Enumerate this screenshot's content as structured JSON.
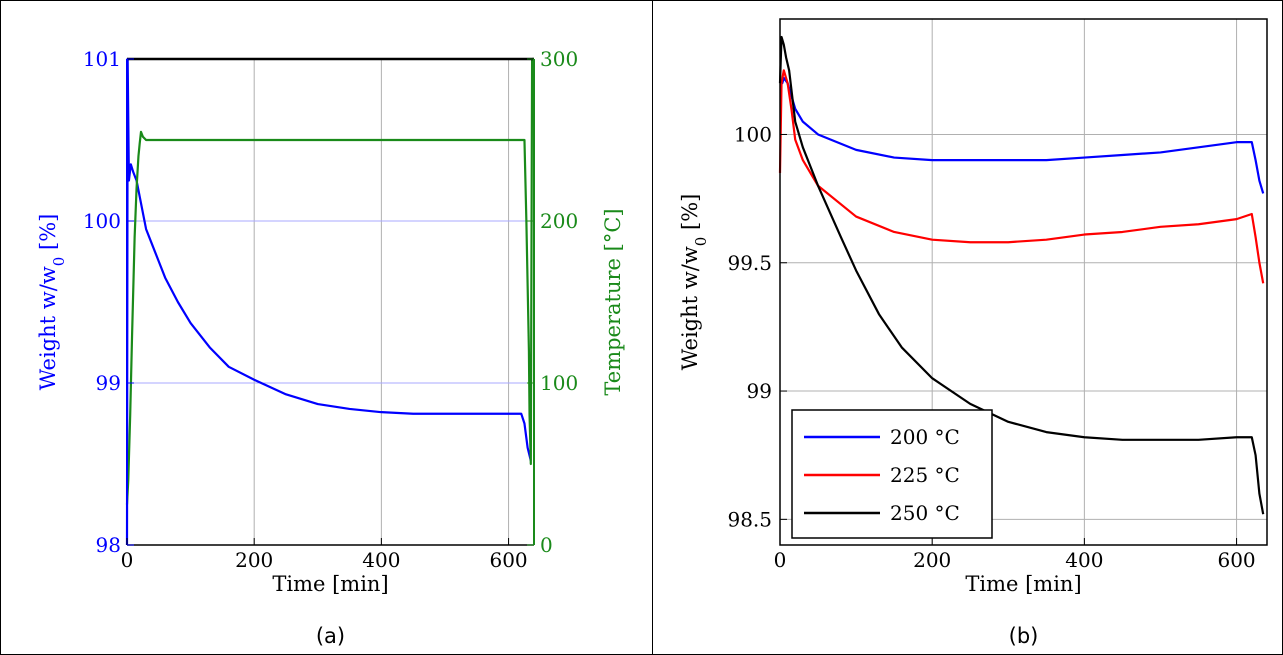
{
  "chart_data": [
    {
      "panel_label": "(a)",
      "type": "line",
      "dual_axis": true,
      "xlabel": "Time [min]",
      "ylabel_left": "Weight w/w",
      "ylabel_left_sub": "0",
      "ylabel_left_unit": " [%]",
      "ylabel_right": "Temperature [°C]",
      "xlim": [
        0,
        640
      ],
      "ylim_left": [
        98,
        101
      ],
      "ylim_right": [
        0,
        300
      ],
      "xticks": [
        0,
        200,
        400,
        600
      ],
      "yticks_left": [
        98,
        99,
        100,
        101
      ],
      "yticks_right": [
        0,
        100,
        200,
        300
      ],
      "grid": true,
      "colors": {
        "weight": "#0000ff",
        "temperature": "#1a8a1a",
        "axis": "#000000"
      },
      "series": [
        {
          "axis": "left",
          "color": "#0000ff",
          "x": [
            0,
            1,
            3,
            6,
            10,
            15,
            20,
            25,
            30,
            40,
            50,
            60,
            80,
            100,
            130,
            160,
            200,
            250,
            300,
            350,
            400,
            450,
            500,
            550,
            600,
            620,
            625,
            630,
            635
          ],
          "y": [
            98.0,
            101.0,
            100.25,
            100.35,
            100.3,
            100.25,
            100.15,
            100.05,
            99.95,
            99.85,
            99.75,
            99.65,
            99.5,
            99.37,
            99.22,
            99.1,
            99.02,
            98.93,
            98.87,
            98.84,
            98.82,
            98.81,
            98.81,
            98.81,
            98.81,
            98.81,
            98.75,
            98.6,
            98.52
          ]
        },
        {
          "axis": "right",
          "color": "#1a8a1a",
          "x": [
            0,
            2,
            5,
            8,
            12,
            15,
            18,
            20,
            22,
            25,
            30,
            40,
            100,
            300,
            500,
            600,
            625,
            628,
            630,
            632,
            633,
            635,
            637,
            640
          ],
          "y": [
            25,
            40,
            80,
            130,
            190,
            220,
            240,
            248,
            255,
            252,
            250,
            250,
            250,
            250,
            250,
            250,
            250,
            200,
            160,
            120,
            80,
            50,
            300,
            300
          ]
        }
      ]
    },
    {
      "panel_label": "(b)",
      "type": "line",
      "xlabel": "Time [min]",
      "ylabel": "Weight w/w",
      "ylabel_sub": "0",
      "ylabel_unit": " [%]",
      "xlim": [
        0,
        640
      ],
      "ylim": [
        98.4,
        100.45
      ],
      "xticks": [
        0,
        200,
        400,
        600
      ],
      "yticks": [
        98.5,
        99,
        99.5,
        100
      ],
      "grid": true,
      "legend": "lower-left",
      "series": [
        {
          "name": "200 °C",
          "color": "#0000ff",
          "x": [
            0,
            3,
            5,
            10,
            15,
            20,
            30,
            50,
            100,
            150,
            200,
            250,
            300,
            350,
            400,
            450,
            500,
            550,
            600,
            620,
            625,
            630,
            635
          ],
          "y": [
            100.2,
            100.2,
            100.22,
            100.2,
            100.15,
            100.1,
            100.05,
            100.0,
            99.94,
            99.91,
            99.9,
            99.9,
            99.9,
            99.9,
            99.91,
            99.92,
            99.93,
            99.95,
            99.97,
            99.97,
            99.9,
            99.82,
            99.77
          ]
        },
        {
          "name": "225 °C",
          "color": "#ff0000",
          "x": [
            0,
            2,
            5,
            10,
            15,
            20,
            30,
            50,
            100,
            150,
            200,
            250,
            300,
            350,
            400,
            450,
            500,
            550,
            600,
            620,
            625,
            630,
            635
          ],
          "y": [
            99.85,
            100.2,
            100.25,
            100.2,
            100.1,
            99.98,
            99.9,
            99.8,
            99.68,
            99.62,
            99.59,
            99.58,
            99.58,
            99.59,
            99.61,
            99.62,
            99.64,
            99.65,
            99.67,
            99.69,
            99.6,
            99.5,
            99.42
          ]
        },
        {
          "name": "250 °C",
          "color": "#000000",
          "x": [
            0,
            2,
            5,
            8,
            12,
            16,
            20,
            30,
            50,
            80,
            100,
            130,
            160,
            200,
            250,
            300,
            350,
            400,
            450,
            500,
            550,
            600,
            620,
            625,
            630,
            635
          ],
          "y": [
            100.2,
            100.38,
            100.35,
            100.3,
            100.25,
            100.15,
            100.05,
            99.95,
            99.8,
            99.6,
            99.47,
            99.3,
            99.17,
            99.05,
            98.95,
            98.88,
            98.84,
            98.82,
            98.81,
            98.81,
            98.81,
            98.82,
            98.82,
            98.75,
            98.6,
            98.52
          ]
        }
      ]
    }
  ]
}
